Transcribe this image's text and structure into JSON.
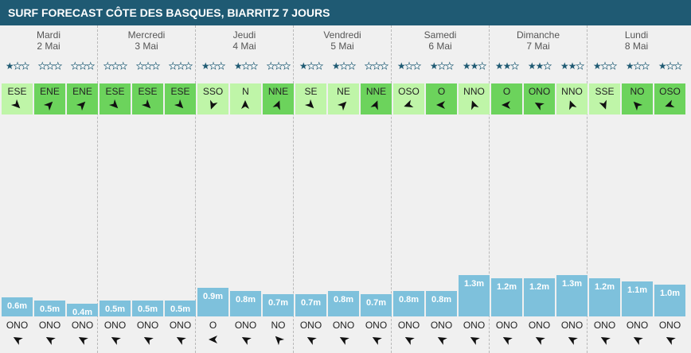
{
  "header": {
    "title": "SURF FORECAST CÔTE DES BASQUES, BIARRITZ 7 JOURS"
  },
  "colors": {
    "header_bg": "#1f5a73",
    "wind_green_dark": "#6cd35c",
    "wind_green_light": "#bff5a8",
    "wave_bar": "#7ec1dc",
    "star": "#1f5a73"
  },
  "legend": {
    "wave_unit": "m"
  },
  "days": [
    {
      "name": "Mardi",
      "date": "2 Mai",
      "slots": [
        {
          "stars": 1,
          "wind_dir": "ESE",
          "wind_deg": 135,
          "wind_strength": "light",
          "wave_height": 0.6,
          "wave_label": "0.6m",
          "swell_dir": "ONO",
          "swell_deg": 300
        },
        {
          "stars": 0,
          "wind_dir": "ENE",
          "wind_deg": 45,
          "wind_strength": "strong",
          "wave_height": 0.5,
          "wave_label": "0.5m",
          "swell_dir": "ONO",
          "swell_deg": 300
        },
        {
          "stars": 0,
          "wind_dir": "ENE",
          "wind_deg": 45,
          "wind_strength": "strong",
          "wave_height": 0.4,
          "wave_label": "0.4m",
          "swell_dir": "ONO",
          "swell_deg": 300
        }
      ]
    },
    {
      "name": "Mercredi",
      "date": "3 Mai",
      "slots": [
        {
          "stars": 0,
          "wind_dir": "ESE",
          "wind_deg": 135,
          "wind_strength": "strong",
          "wave_height": 0.5,
          "wave_label": "0.5m",
          "swell_dir": "ONO",
          "swell_deg": 300
        },
        {
          "stars": 0,
          "wind_dir": "ESE",
          "wind_deg": 135,
          "wind_strength": "strong",
          "wave_height": 0.5,
          "wave_label": "0.5m",
          "swell_dir": "ONO",
          "swell_deg": 300
        },
        {
          "stars": 0,
          "wind_dir": "ESE",
          "wind_deg": 135,
          "wind_strength": "strong",
          "wave_height": 0.5,
          "wave_label": "0.5m",
          "swell_dir": "ONO",
          "swell_deg": 300
        }
      ]
    },
    {
      "name": "Jeudi",
      "date": "4 Mai",
      "slots": [
        {
          "stars": 1,
          "wind_dir": "SSO",
          "wind_deg": 200,
          "wind_strength": "light",
          "wave_height": 0.9,
          "wave_label": "0.9m",
          "swell_dir": "O",
          "swell_deg": 270
        },
        {
          "stars": 1,
          "wind_dir": "N",
          "wind_deg": 0,
          "wind_strength": "light",
          "wave_height": 0.8,
          "wave_label": "0.8m",
          "swell_dir": "ONO",
          "swell_deg": 300
        },
        {
          "stars": 0,
          "wind_dir": "NNE",
          "wind_deg": 22,
          "wind_strength": "strong",
          "wave_height": 0.7,
          "wave_label": "0.7m",
          "swell_dir": "NO",
          "swell_deg": 315
        }
      ]
    },
    {
      "name": "Vendredi",
      "date": "5 Mai",
      "slots": [
        {
          "stars": 1,
          "wind_dir": "SE",
          "wind_deg": 135,
          "wind_strength": "light",
          "wave_height": 0.7,
          "wave_label": "0.7m",
          "swell_dir": "ONO",
          "swell_deg": 300
        },
        {
          "stars": 1,
          "wind_dir": "NE",
          "wind_deg": 45,
          "wind_strength": "light",
          "wave_height": 0.8,
          "wave_label": "0.8m",
          "swell_dir": "ONO",
          "swell_deg": 300
        },
        {
          "stars": 0,
          "wind_dir": "NNE",
          "wind_deg": 22,
          "wind_strength": "strong",
          "wave_height": 0.7,
          "wave_label": "0.7m",
          "swell_dir": "ONO",
          "swell_deg": 300
        }
      ]
    },
    {
      "name": "Samedi",
      "date": "6 Mai",
      "slots": [
        {
          "stars": 1,
          "wind_dir": "OSO",
          "wind_deg": 250,
          "wind_strength": "light",
          "wave_height": 0.8,
          "wave_label": "0.8m",
          "swell_dir": "ONO",
          "swell_deg": 300
        },
        {
          "stars": 1,
          "wind_dir": "O",
          "wind_deg": 270,
          "wind_strength": "strong",
          "wave_height": 0.8,
          "wave_label": "0.8m",
          "swell_dir": "ONO",
          "swell_deg": 300
        },
        {
          "stars": 2,
          "wind_dir": "NNO",
          "wind_deg": 340,
          "wind_strength": "light",
          "wave_height": 1.3,
          "wave_label": "1.3m",
          "swell_dir": "ONO",
          "swell_deg": 300
        }
      ]
    },
    {
      "name": "Dimanche",
      "date": "7 Mai",
      "slots": [
        {
          "stars": 2,
          "wind_dir": "O",
          "wind_deg": 270,
          "wind_strength": "strong",
          "wave_height": 1.2,
          "wave_label": "1.2m",
          "swell_dir": "ONO",
          "swell_deg": 300
        },
        {
          "stars": 2,
          "wind_dir": "ONO",
          "wind_deg": 300,
          "wind_strength": "strong",
          "wave_height": 1.2,
          "wave_label": "1.2m",
          "swell_dir": "ONO",
          "swell_deg": 300
        },
        {
          "stars": 2,
          "wind_dir": "NNO",
          "wind_deg": 340,
          "wind_strength": "light",
          "wave_height": 1.3,
          "wave_label": "1.3m",
          "swell_dir": "ONO",
          "swell_deg": 300
        }
      ]
    },
    {
      "name": "Lundi",
      "date": "8 Mai",
      "slots": [
        {
          "stars": 1,
          "wind_dir": "SSE",
          "wind_deg": 160,
          "wind_strength": "light",
          "wave_height": 1.2,
          "wave_label": "1.2m",
          "swell_dir": "ONO",
          "swell_deg": 300
        },
        {
          "stars": 1,
          "wind_dir": "NO",
          "wind_deg": 315,
          "wind_strength": "strong",
          "wave_height": 1.1,
          "wave_label": "1.1m",
          "swell_dir": "ONO",
          "swell_deg": 300
        },
        {
          "stars": 1,
          "wind_dir": "OSO",
          "wind_deg": 250,
          "wind_strength": "strong",
          "wave_height": 1.0,
          "wave_label": "1.0m",
          "swell_dir": "ONO",
          "swell_deg": 300
        }
      ]
    }
  ]
}
